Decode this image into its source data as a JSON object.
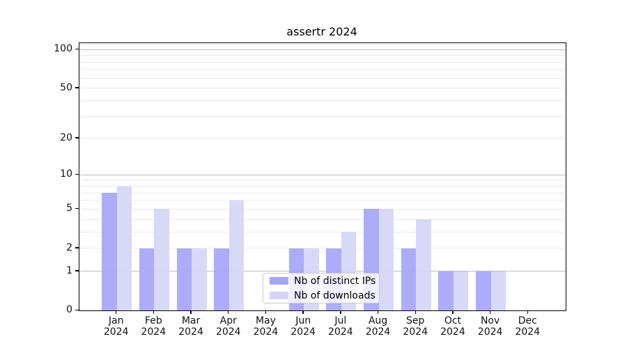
{
  "chart_data": {
    "type": "bar",
    "title": "assertr 2024",
    "categories": [
      "Jan 2024",
      "Feb 2024",
      "Mar 2024",
      "Apr 2024",
      "May 2024",
      "Jun 2024",
      "Jul 2024",
      "Aug 2024",
      "Sep 2024",
      "Oct 2024",
      "Nov 2024",
      "Dec 2024"
    ],
    "series": [
      {
        "name": "Nb of distinct IPs",
        "color": "#a6a6f7",
        "values": [
          7,
          2,
          2,
          2,
          0,
          2,
          2,
          5,
          2,
          1,
          1,
          0
        ]
      },
      {
        "name": "Nb of downloads",
        "color": "#d5d5f7",
        "values": [
          8,
          5,
          2,
          6,
          0,
          2,
          3,
          5,
          4,
          1,
          1,
          0
        ]
      }
    ],
    "y_axis": {
      "scale": "log1p",
      "range": [
        0,
        112
      ],
      "labeled_ticks": [
        0,
        1,
        2,
        5,
        10,
        20,
        50,
        100
      ],
      "major_gridlines": [
        1,
        10,
        100
      ],
      "minor_gridlines": [
        2,
        3,
        4,
        5,
        6,
        7,
        8,
        9,
        20,
        30,
        40,
        50,
        60,
        70,
        80,
        90
      ]
    },
    "legend_position": "lower center",
    "grid": "horizontal-only",
    "colors": {
      "major_grid": "#bdbdbd",
      "minor_grid": "#e9e9e9",
      "axis": "#000000",
      "text": "#111111",
      "legend_border": "#cccccc"
    }
  }
}
